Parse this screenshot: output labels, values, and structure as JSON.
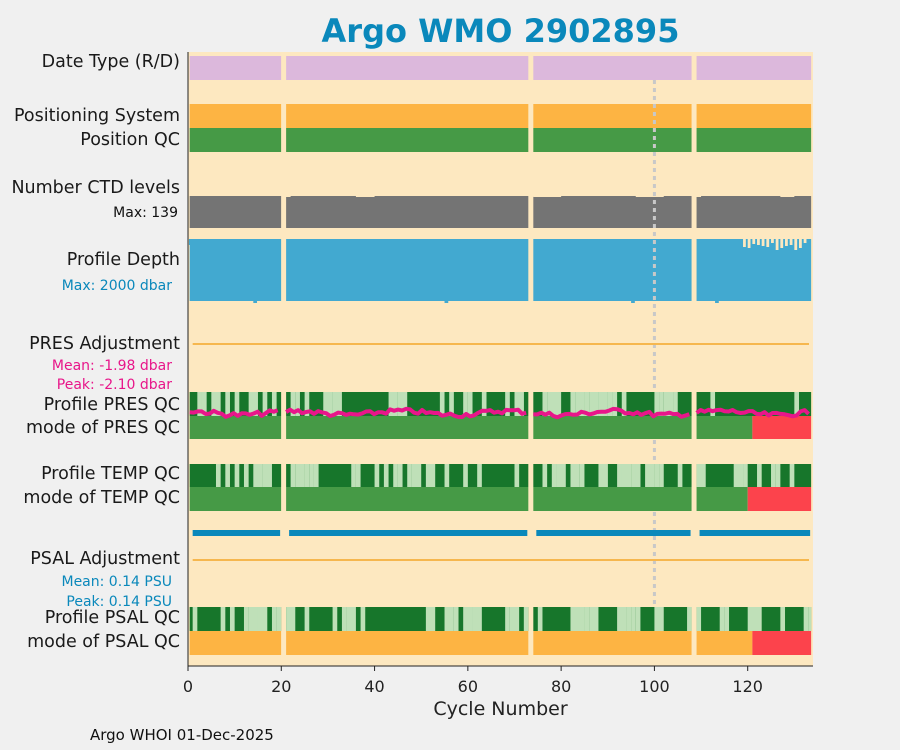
{
  "title": "Argo WMO 2902895",
  "footer": "Argo WHOI 01-Dec-2025",
  "colors": {
    "title": "#0a88bb",
    "background": "#fde8c0",
    "date_type": "#dcb8dc",
    "orange": "#fdb443",
    "green": "#469a46",
    "dark_green": "#17762b",
    "light_green": "#bfe0b8",
    "red": "#fc434c",
    "gray": "#747474",
    "blue": "#42a9d0",
    "magenta": "#e8168a",
    "teal": "#0a88bb",
    "adjust_line": "#f6b74e",
    "ref_line": "#c8c8c8"
  },
  "row_labels": {
    "date_type": "Date Type (R/D)",
    "positioning": "Positioning System",
    "position_qc": "Position QC",
    "ctd_levels": "Number CTD levels",
    "profile_depth": "Profile Depth",
    "pres_adjustment": "PRES Adjustment",
    "profile_pres_qc": "Profile PRES QC",
    "mode_pres_qc": "mode of PRES QC",
    "profile_temp_qc": "Profile TEMP QC",
    "mode_temp_qc": "mode of TEMP QC",
    "psal_adjustment": "PSAL Adjustment",
    "profile_psal_qc": "Profile PSAL QC",
    "mode_psal_qc": "mode of PSAL QC"
  },
  "annotations": {
    "ctd_max": "Max: 139",
    "depth_max": "Max: 2000 dbar",
    "pres_mean": "Mean: -1.98 dbar",
    "pres_peak": "Peak: -2.10 dbar",
    "psal_mean": "Mean: 0.14 PSU",
    "psal_peak": "Peak: 0.14 PSU"
  },
  "chart_data": {
    "type": "table",
    "xlabel": "Cycle Number",
    "xlim": [
      0,
      134
    ],
    "xticks": [
      0,
      20,
      40,
      60,
      80,
      100,
      120
    ],
    "reference_cycle": 100,
    "data_gaps_after_cycle": [
      20.5,
      73.5,
      108.5
    ],
    "ctd_levels_max": 139,
    "profile_depth_max_dbar": 2000,
    "pres_adjustment_mean_dbar": -1.98,
    "pres_adjustment_peak_dbar": -2.1,
    "psal_adjustment_mean_psu": 0.14,
    "psal_adjustment_peak_psu": 0.14,
    "mode_pres_qc_red_from_cycle": 121,
    "mode_temp_qc_red_from_cycle": 120,
    "mode_psal_qc_red_from_cycle": 121
  }
}
